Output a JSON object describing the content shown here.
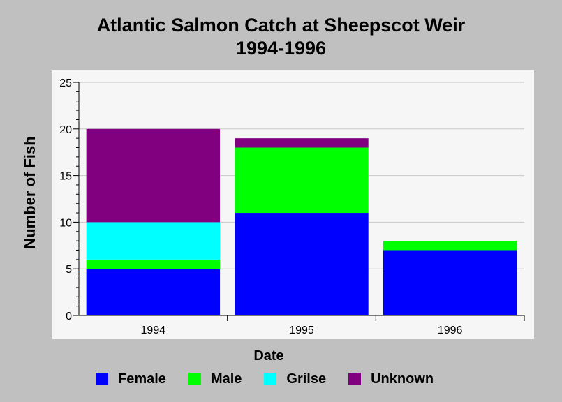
{
  "chart_data": {
    "type": "bar",
    "stacked": true,
    "title": [
      "Atlantic Salmon Catch at Sheepscot Weir",
      "1994-1996"
    ],
    "xlabel": "Date",
    "ylabel": "Number of Fish",
    "categories": [
      "1994",
      "1995",
      "1996"
    ],
    "series": [
      {
        "name": "Female",
        "color": "#0000ff",
        "values": [
          5,
          11,
          7
        ]
      },
      {
        "name": "Male",
        "color": "#00ff00",
        "values": [
          1,
          7,
          1
        ]
      },
      {
        "name": "Grilse",
        "color": "#00ffff",
        "values": [
          4,
          0,
          0
        ]
      },
      {
        "name": "Unknown",
        "color": "#800080",
        "values": [
          10,
          1,
          0
        ]
      }
    ],
    "ylim": [
      0,
      25
    ],
    "yticks": [
      0,
      5,
      10,
      15,
      20,
      25
    ],
    "grid": true,
    "legend_position": "bottom",
    "plot_background": "#f6f6f6",
    "background": "#c0c0c0"
  }
}
